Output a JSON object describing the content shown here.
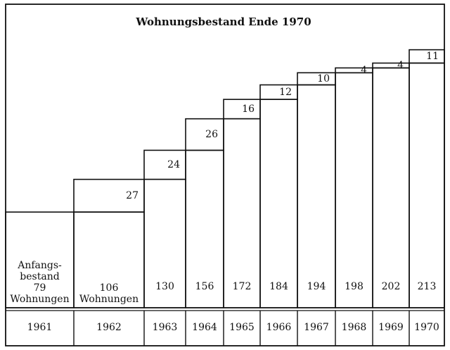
{
  "chart_data": {
    "type": "stock-steps",
    "title": "Wohnungsbestand Ende 1970",
    "categories": [
      "1961",
      "1962",
      "1963",
      "1964",
      "1965",
      "1966",
      "1967",
      "1968",
      "1969",
      "1970"
    ],
    "totals": [
      79,
      106,
      130,
      156,
      172,
      184,
      194,
      198,
      202,
      213
    ],
    "increments": [
      null,
      27,
      24,
      26,
      16,
      12,
      10,
      4,
      4,
      11
    ],
    "initial_label": [
      "Anfangs-",
      "bestand"
    ],
    "unit_label": "Wohnungen",
    "ylim": [
      0,
      225
    ],
    "color": "#111111"
  }
}
